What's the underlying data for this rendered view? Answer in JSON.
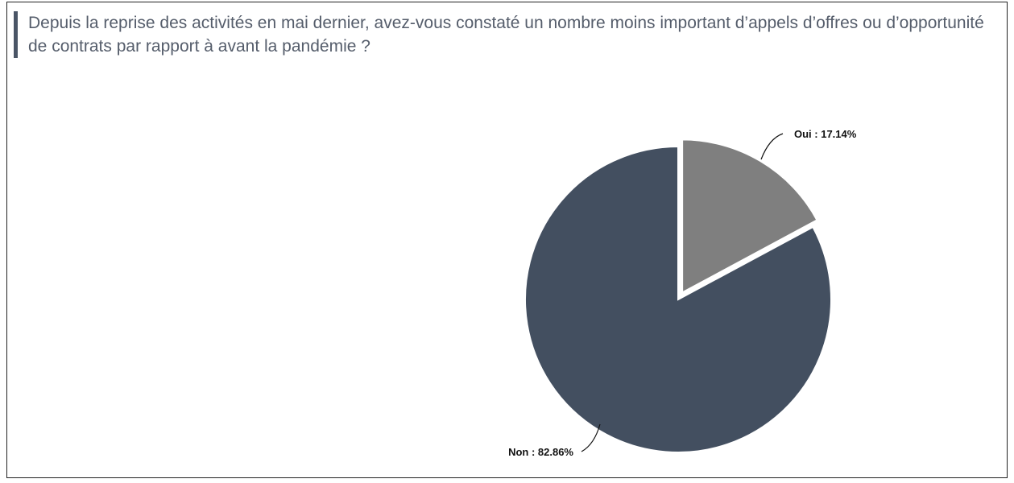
{
  "chart_data": {
    "type": "pie",
    "title": "Depuis la reprise des activités en mai dernier, avez-vous constaté un nombre moins important d’appels d’offres ou d’opportunité de contrats par rapport à avant la pandémie ?",
    "slices": [
      {
        "label": "Oui",
        "value": 17.14,
        "display": "Oui  : 17.14%",
        "color": "#7f7f7f",
        "exploded": true
      },
      {
        "label": "Non",
        "value": 82.86,
        "display": "Non : 82.86%",
        "color": "#434f60",
        "exploded": false
      }
    ],
    "start_angle_deg": 0,
    "direction": "clockwise",
    "legend": "none"
  }
}
